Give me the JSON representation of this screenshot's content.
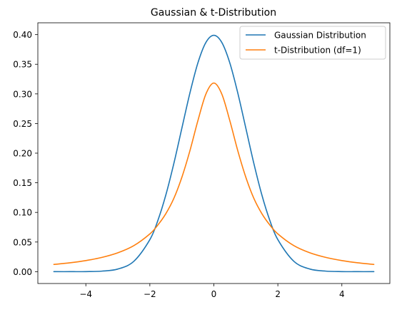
{
  "chart_data": {
    "type": "line",
    "title": "Gaussian & t-Distribution",
    "xlabel": "",
    "ylabel": "",
    "xlim": [
      -5.5,
      5.5
    ],
    "ylim": [
      -0.02,
      0.42
    ],
    "x_ticks": [
      -4,
      -2,
      0,
      2,
      4
    ],
    "x_tick_labels": [
      "−4",
      "−2",
      "0",
      "2",
      "4"
    ],
    "y_ticks": [
      0.0,
      0.05,
      0.1,
      0.15,
      0.2,
      0.25,
      0.3,
      0.35,
      0.4
    ],
    "y_tick_labels": [
      "0.00",
      "0.05",
      "0.10",
      "0.15",
      "0.20",
      "0.25",
      "0.30",
      "0.35",
      "0.40"
    ],
    "grid": false,
    "legend_position": "top-right",
    "x": [
      -5.0,
      -4.5,
      -4.0,
      -3.5,
      -3.0,
      -2.5,
      -2.0,
      -1.75,
      -1.5,
      -1.25,
      -1.0,
      -0.75,
      -0.5,
      -0.25,
      0.0,
      0.25,
      0.5,
      0.75,
      1.0,
      1.25,
      1.5,
      1.75,
      2.0,
      2.5,
      3.0,
      3.5,
      4.0,
      4.5,
      5.0
    ],
    "series": [
      {
        "name": "Gaussian Distribution",
        "color": "#1f77b4",
        "values": [
          0.0,
          0.0,
          0.0001,
          0.0009,
          0.0044,
          0.0175,
          0.054,
          0.0863,
          0.1295,
          0.1826,
          0.242,
          0.3011,
          0.3521,
          0.3867,
          0.3989,
          0.3867,
          0.3521,
          0.3011,
          0.242,
          0.1826,
          0.1295,
          0.0863,
          0.054,
          0.0175,
          0.0044,
          0.0009,
          0.0001,
          0.0,
          0.0
        ]
      },
      {
        "name": "t-Distribution (df=1)",
        "color": "#ff7f0e",
        "values": [
          0.0122,
          0.0149,
          0.0187,
          0.024,
          0.0318,
          0.0439,
          0.0637,
          0.0787,
          0.0979,
          0.1237,
          0.1592,
          0.2037,
          0.2546,
          0.2996,
          0.3183,
          0.2996,
          0.2546,
          0.2037,
          0.1592,
          0.1237,
          0.0979,
          0.0787,
          0.0637,
          0.0439,
          0.0318,
          0.024,
          0.0187,
          0.0149,
          0.0122
        ]
      }
    ]
  }
}
